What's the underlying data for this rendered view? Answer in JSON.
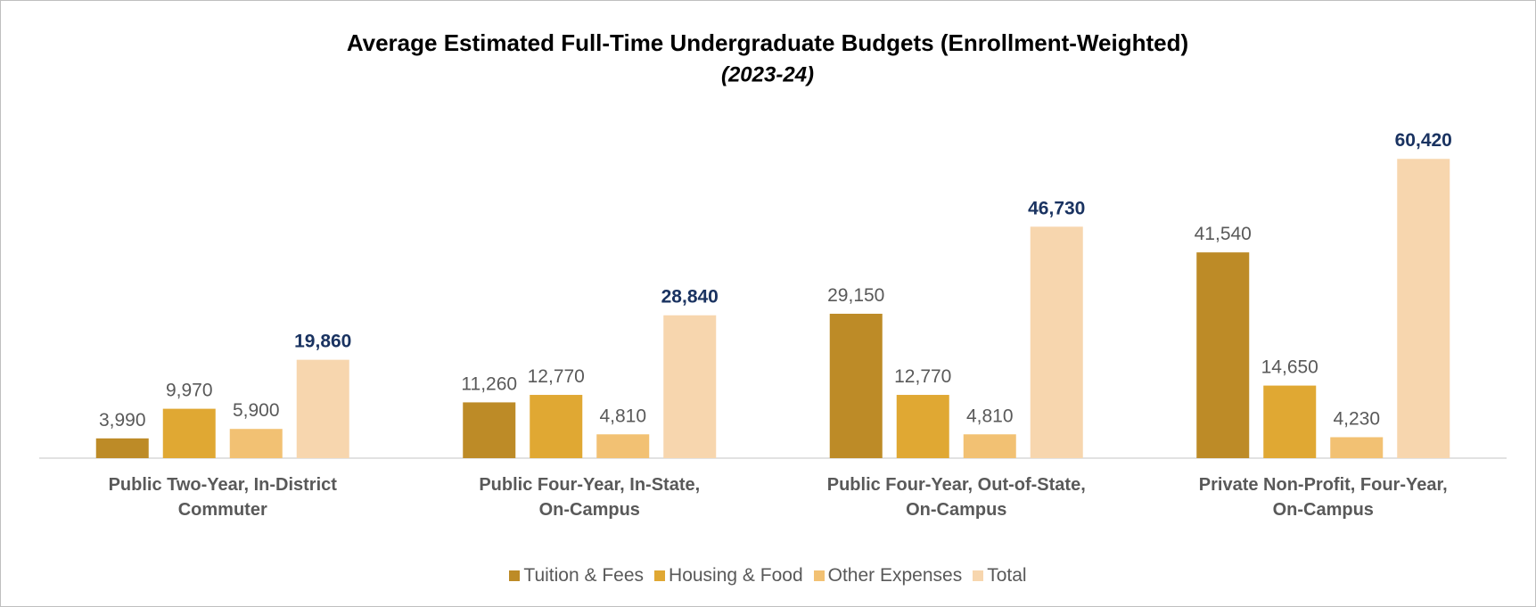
{
  "chart_data": {
    "type": "bar",
    "title": "Average Estimated Full-Time Undergraduate Budgets (Enrollment-Weighted)",
    "subtitle": "(2023-24)",
    "categories": [
      "Public Two-Year, In-District\nCommuter",
      "Public Four-Year, In-State,\nOn-Campus",
      "Public Four-Year, Out-of-State,\nOn-Campus",
      "Private Non-Profit, Four-Year,\nOn-Campus"
    ],
    "ylim": [
      0,
      70000
    ],
    "legend": "bottom",
    "series": [
      {
        "name": "Tuition & Fees",
        "color": "#bd8b27",
        "values": [
          3990,
          11260,
          29150,
          41540
        ],
        "value_labels": [
          "3,990",
          "11,260",
          "29,150",
          "41,540"
        ],
        "label_color": "#595959"
      },
      {
        "name": "Housing & Food",
        "color": "#e0a833",
        "values": [
          9970,
          12770,
          12770,
          14650
        ],
        "value_labels": [
          "9,970",
          "12,770",
          "12,770",
          "14,650"
        ],
        "label_color": "#595959"
      },
      {
        "name": "Other Expenses",
        "color": "#f2c173",
        "values": [
          5900,
          4810,
          4810,
          4230
        ],
        "value_labels": [
          "5,900",
          "4,810",
          "4,810",
          "4,230"
        ],
        "label_color": "#595959"
      },
      {
        "name": "Total",
        "color": "#f7d6ae",
        "values": [
          19860,
          28840,
          46730,
          60420
        ],
        "value_labels": [
          "19,860",
          "28,840",
          "46,730",
          "60,420"
        ],
        "label_color": "#1a3361",
        "label_bold": true
      }
    ]
  }
}
